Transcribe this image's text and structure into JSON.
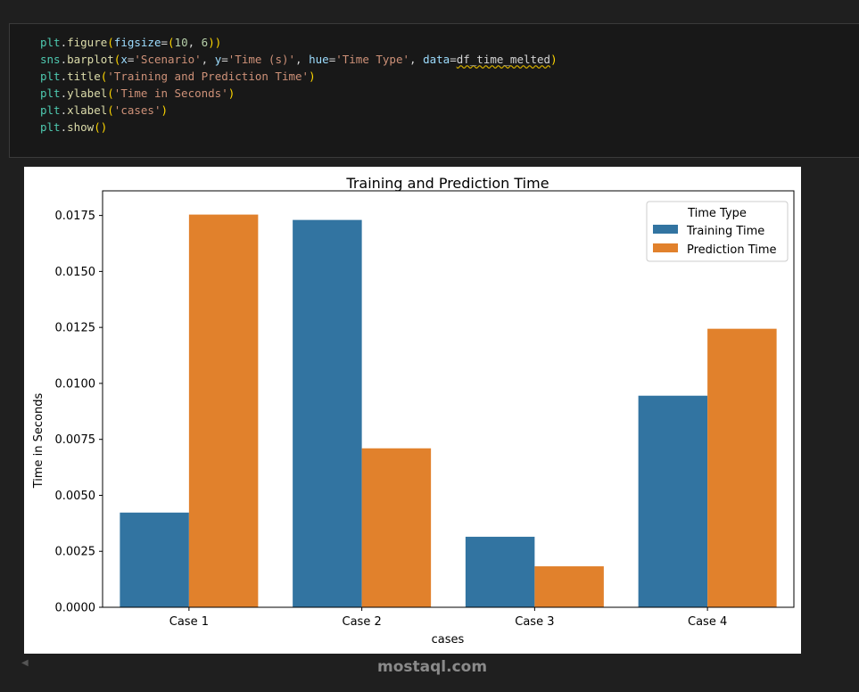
{
  "code_cell": {
    "lines": [
      "plt.figure(figsize=(10, 6))",
      "sns.barplot(x='Scenario', y='Time (s)', hue='Time Type', data=df_time_melted)",
      "plt.title('Training and Prediction Time')",
      "plt.ylabel('Time in Seconds')",
      "plt.xlabel('cases')",
      "plt.show()"
    ]
  },
  "watermark": "mostaql.com",
  "chart_data": {
    "type": "bar",
    "title": "Training and Prediction Time",
    "xlabel": "cases",
    "ylabel": "Time in Seconds",
    "categories": [
      "Case 1",
      "Case 2",
      "Case 3",
      "Case 4"
    ],
    "series": [
      {
        "name": "Training Time",
        "color": "#3274a1",
        "values": [
          0.00423,
          0.0173,
          0.00315,
          0.00945
        ]
      },
      {
        "name": "Prediction Time",
        "color": "#e1812c",
        "values": [
          0.01754,
          0.0071,
          0.00183,
          0.01244
        ]
      }
    ],
    "ylim": [
      0,
      0.0186
    ],
    "yticks": [
      "0.0000",
      "0.0025",
      "0.0050",
      "0.0075",
      "0.0100",
      "0.0125",
      "0.0150",
      "0.0175"
    ],
    "legend": {
      "title": "Time Type",
      "placement": "top-right"
    },
    "grid": false
  }
}
